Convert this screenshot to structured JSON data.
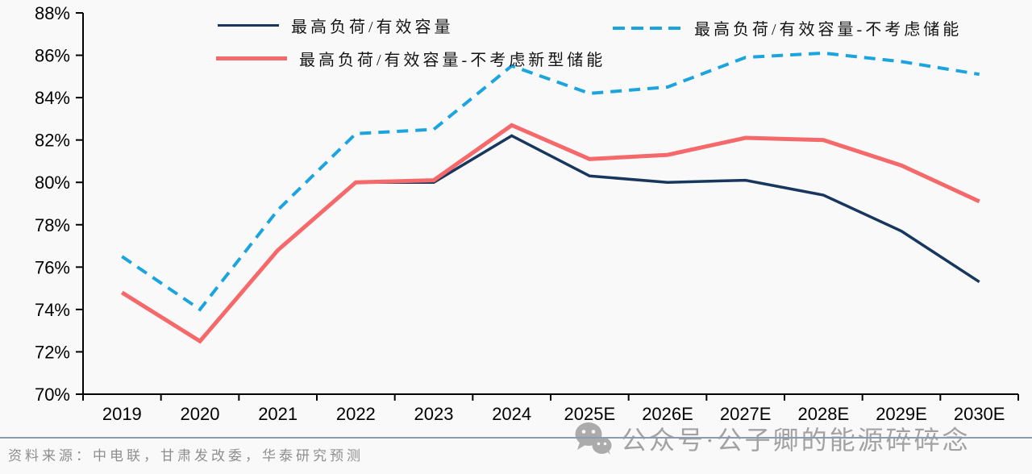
{
  "chart_data": {
    "type": "line",
    "categories": [
      "2019",
      "2020",
      "2021",
      "2022",
      "2023",
      "2024",
      "2025E",
      "2026E",
      "2027E",
      "2028E",
      "2029E",
      "2030E"
    ],
    "series": [
      {
        "name": "最高负荷/有效容量",
        "color": "#17375e",
        "dash": false,
        "width": 3.5,
        "values": [
          null,
          null,
          null,
          80.0,
          80.0,
          82.2,
          80.3,
          80.0,
          80.1,
          79.4,
          77.7,
          75.3
        ]
      },
      {
        "name": "最高负荷/有效容量-不考虑新型储能",
        "color": "#f5696b",
        "dash": false,
        "width": 5,
        "values": [
          74.8,
          72.5,
          76.8,
          80.0,
          80.1,
          82.7,
          81.1,
          81.3,
          82.1,
          82.0,
          80.8,
          79.1
        ]
      },
      {
        "name": "最高负荷/有效容量-不考虑储能",
        "color": "#1ca4de",
        "dash": true,
        "width": 4,
        "values": [
          76.5,
          74.0,
          78.7,
          82.3,
          82.5,
          85.5,
          84.2,
          84.5,
          85.9,
          86.1,
          85.7,
          85.1
        ]
      }
    ],
    "title": "",
    "xlabel": "",
    "ylabel": "",
    "ylim": [
      70,
      88
    ],
    "ytick_step": 2,
    "ytick_suffix": "%",
    "grid": false,
    "legend_position": "top",
    "axis_color": "#000000"
  },
  "footer": {
    "source": "资料来源：中电联，甘肃发改委，华泰研究预测"
  },
  "watermark": {
    "text": "公众号·公子卿的能源碎碎念",
    "icon": "wechat-icon",
    "color": "#8f8f8f"
  }
}
